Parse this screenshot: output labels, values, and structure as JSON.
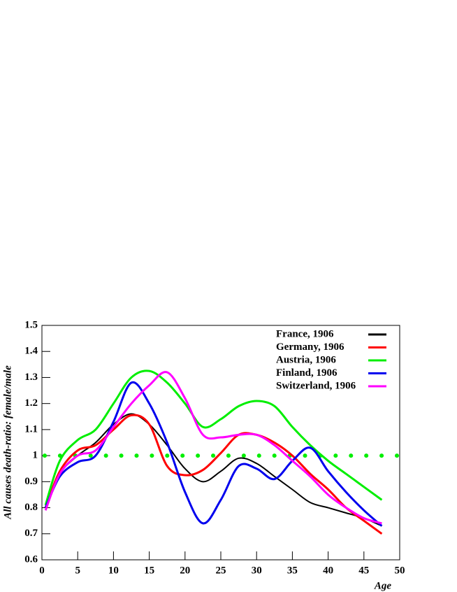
{
  "chart_data": {
    "type": "line",
    "x_label": "Age",
    "y_label": "All causes death-ratio: female/male",
    "x": [
      0.5,
      2.5,
      5,
      7.5,
      10,
      12.5,
      15,
      17.5,
      20,
      22.5,
      25,
      27.5,
      30,
      32.5,
      35,
      37.5,
      40,
      42.5,
      45,
      47.5
    ],
    "series": [
      {
        "name": "France, 1906",
        "color": "#000000",
        "values": [
          0.8,
          0.93,
          1.0,
          1.05,
          1.12,
          1.16,
          1.12,
          1.04,
          0.95,
          0.9,
          0.94,
          0.99,
          0.97,
          0.92,
          0.87,
          0.82,
          0.8,
          0.78,
          0.76,
          0.73
        ]
      },
      {
        "name": "Germany, 1906",
        "color": "#ff0000",
        "values": [
          0.8,
          0.94,
          1.02,
          1.04,
          1.1,
          1.155,
          1.12,
          0.96,
          0.925,
          0.945,
          1.01,
          1.08,
          1.08,
          1.05,
          1.0,
          0.93,
          0.87,
          0.8,
          0.75,
          0.7
        ]
      },
      {
        "name": "Austria, 1906",
        "color": "#00ee00",
        "values": [
          0.81,
          0.98,
          1.06,
          1.1,
          1.2,
          1.3,
          1.325,
          1.28,
          1.2,
          1.11,
          1.14,
          1.19,
          1.21,
          1.19,
          1.11,
          1.04,
          0.98,
          0.93,
          0.88,
          0.83
        ]
      },
      {
        "name": "Finland, 1906",
        "color": "#0000ee",
        "values": [
          0.8,
          0.92,
          0.975,
          1.0,
          1.13,
          1.28,
          1.2,
          1.05,
          0.86,
          0.74,
          0.83,
          0.96,
          0.95,
          0.91,
          0.98,
          1.03,
          0.94,
          0.86,
          0.79,
          0.73
        ]
      },
      {
        "name": "Switzerland, 1906",
        "color": "#ff00ff",
        "values": [
          0.79,
          0.93,
          1.0,
          1.02,
          1.11,
          1.2,
          1.27,
          1.32,
          1.22,
          1.08,
          1.07,
          1.08,
          1.08,
          1.04,
          0.98,
          0.92,
          0.85,
          0.8,
          0.76,
          0.74
        ]
      }
    ],
    "reference_line": {
      "value": 1,
      "color": "#00ee00"
    },
    "xlim": [
      0,
      50
    ],
    "xticks": [
      0,
      5,
      10,
      15,
      20,
      25,
      30,
      35,
      40,
      45,
      50
    ],
    "ylim": [
      0.6,
      1.5
    ],
    "yticks": [
      0.6,
      0.7,
      0.8,
      0.9,
      1,
      1.1,
      1.2,
      1.3,
      1.4,
      1.5
    ],
    "legend": "top-right"
  }
}
